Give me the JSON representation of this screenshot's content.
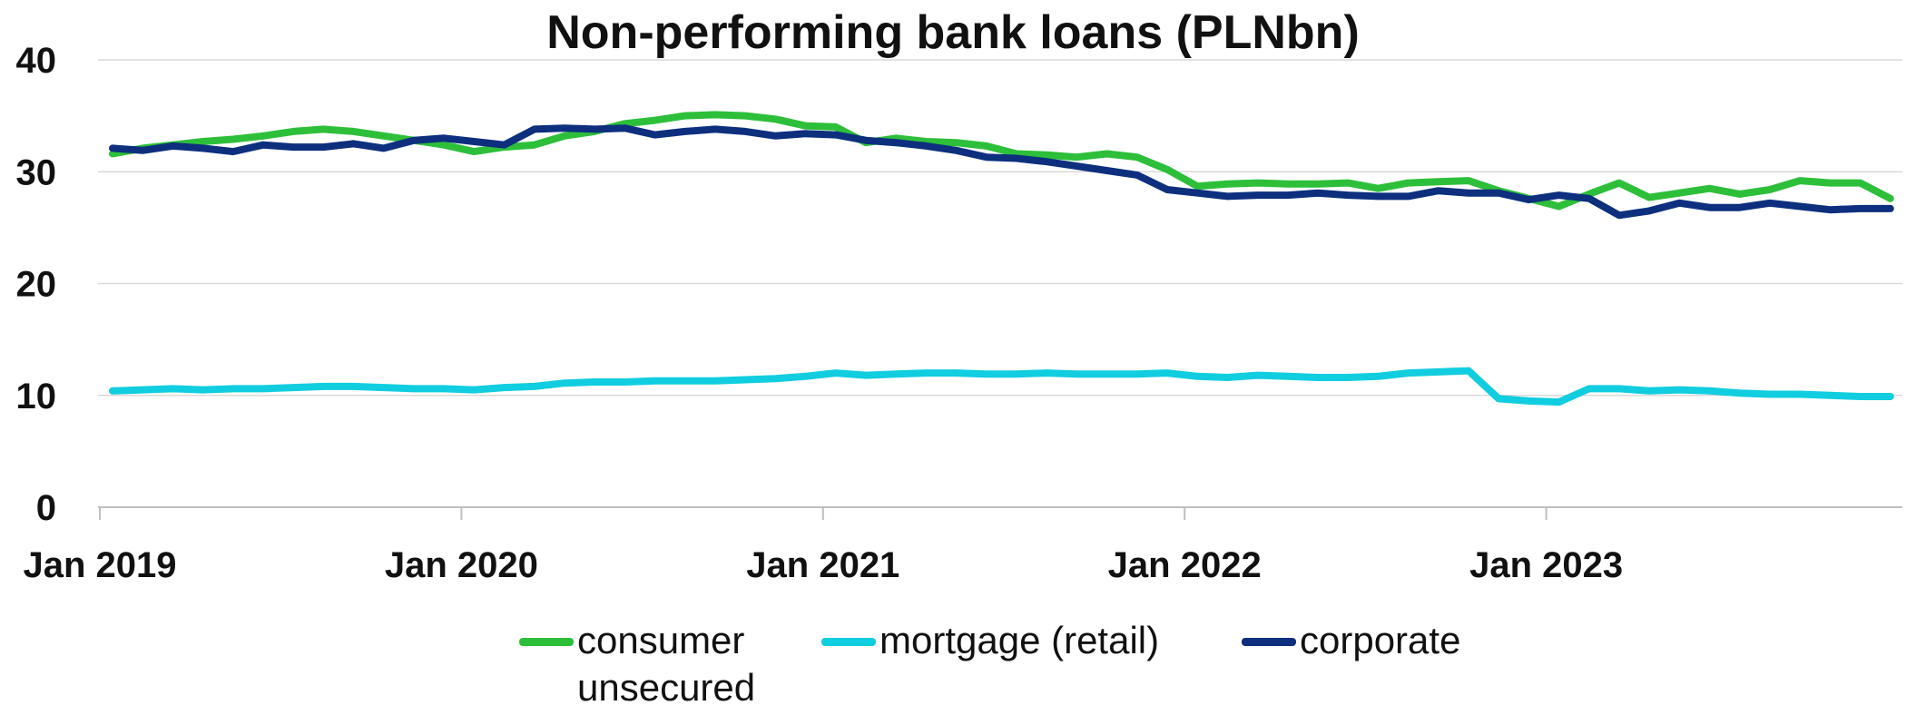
{
  "chart_data": {
    "type": "line",
    "title": "Non-performing bank loans (PLNbn)",
    "xlabel": "",
    "ylabel": "",
    "ylim": [
      0,
      40
    ],
    "yticks": [
      0,
      10,
      20,
      30,
      40
    ],
    "x_tick_labels": [
      "Jan 2019",
      "Jan 2020",
      "Jan 2021",
      "Jan 2022",
      "Jan 2023"
    ],
    "grid": "horizontal",
    "legend_position": "bottom",
    "x": [
      "2019-01",
      "2019-02",
      "2019-03",
      "2019-04",
      "2019-05",
      "2019-06",
      "2019-07",
      "2019-08",
      "2019-09",
      "2019-10",
      "2019-11",
      "2019-12",
      "2020-01",
      "2020-02",
      "2020-03",
      "2020-04",
      "2020-05",
      "2020-06",
      "2020-07",
      "2020-08",
      "2020-09",
      "2020-10",
      "2020-11",
      "2020-12",
      "2021-01",
      "2021-02",
      "2021-03",
      "2021-04",
      "2021-05",
      "2021-06",
      "2021-07",
      "2021-08",
      "2021-09",
      "2021-10",
      "2021-11",
      "2021-12",
      "2022-01",
      "2022-02",
      "2022-03",
      "2022-04",
      "2022-05",
      "2022-06",
      "2022-07",
      "2022-08",
      "2022-09",
      "2022-10",
      "2022-11",
      "2022-12",
      "2023-01",
      "2023-02",
      "2023-03",
      "2023-04",
      "2023-05",
      "2023-06",
      "2023-07",
      "2023-08",
      "2023-09",
      "2023-10",
      "2023-11",
      "2023-12"
    ],
    "series": [
      {
        "name": "consumer unsecured",
        "color": "#2dbf3a",
        "values": [
          31.6,
          32.1,
          32.4,
          32.7,
          32.9,
          33.2,
          33.6,
          33.8,
          33.6,
          33.2,
          32.8,
          32.4,
          31.8,
          32.2,
          32.4,
          33.2,
          33.6,
          34.3,
          34.6,
          35.0,
          35.1,
          35.0,
          34.7,
          34.1,
          34.0,
          32.6,
          33.0,
          32.7,
          32.6,
          32.3,
          31.6,
          31.5,
          31.3,
          31.6,
          31.3,
          30.2,
          28.7,
          28.9,
          29.0,
          28.9,
          28.9,
          29.0,
          28.5,
          29.0,
          29.1,
          29.2,
          28.3,
          27.6,
          26.9,
          28.0,
          29.0,
          27.7,
          28.1,
          28.5,
          28.0,
          28.4,
          29.2,
          29.0,
          29.0,
          27.6
        ]
      },
      {
        "name": "mortgage (retail)",
        "color": "#11cde0",
        "values": [
          10.4,
          10.5,
          10.6,
          10.5,
          10.6,
          10.6,
          10.7,
          10.8,
          10.8,
          10.7,
          10.6,
          10.6,
          10.5,
          10.7,
          10.8,
          11.1,
          11.2,
          11.2,
          11.3,
          11.3,
          11.3,
          11.4,
          11.5,
          11.7,
          12.0,
          11.8,
          11.9,
          12.0,
          12.0,
          11.9,
          11.9,
          12.0,
          11.9,
          11.9,
          11.9,
          12.0,
          11.7,
          11.6,
          11.8,
          11.7,
          11.6,
          11.6,
          11.7,
          12.0,
          12.1,
          12.2,
          9.7,
          9.5,
          9.4,
          10.6,
          10.6,
          10.4,
          10.5,
          10.4,
          10.2,
          10.1,
          10.1,
          10.0,
          9.9,
          9.9
        ]
      },
      {
        "name": "corporate",
        "color": "#0d2f7e",
        "values": [
          32.1,
          31.9,
          32.3,
          32.1,
          31.8,
          32.4,
          32.2,
          32.2,
          32.5,
          32.1,
          32.8,
          33.0,
          32.7,
          32.4,
          33.8,
          33.9,
          33.8,
          33.9,
          33.3,
          33.6,
          33.8,
          33.6,
          33.2,
          33.4,
          33.3,
          32.8,
          32.6,
          32.3,
          31.9,
          31.3,
          31.2,
          30.9,
          30.5,
          30.1,
          29.7,
          28.4,
          28.1,
          27.8,
          27.9,
          27.9,
          28.1,
          27.9,
          27.8,
          27.8,
          28.3,
          28.1,
          28.1,
          27.5,
          27.9,
          27.6,
          26.1,
          26.5,
          27.2,
          26.8,
          26.8,
          27.2,
          26.9,
          26.6,
          26.7,
          26.7
        ]
      }
    ]
  }
}
